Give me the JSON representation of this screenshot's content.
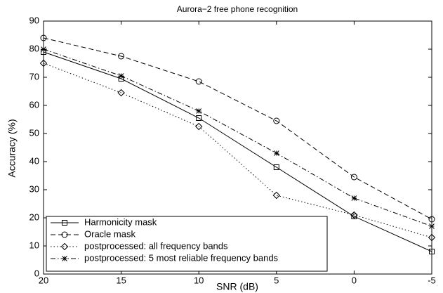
{
  "chart_data": {
    "type": "line",
    "title": "Aurora−2 free phone recognition",
    "xlabel": "SNR (dB)",
    "ylabel": "Accuracy (%)",
    "x": [
      20,
      15,
      10,
      5,
      0,
      -5
    ],
    "xlim": [
      20,
      -5
    ],
    "xticks": [
      20,
      15,
      10,
      5,
      0,
      -5
    ],
    "ylim": [
      0,
      90
    ],
    "yticks": [
      0,
      10,
      20,
      30,
      40,
      50,
      60,
      70,
      80,
      90
    ],
    "legend": "lower left",
    "series": [
      {
        "name": "Harmonicity mask",
        "color": "#000000",
        "linestyle": "solid",
        "marker": "square",
        "values": [
          79,
          69.5,
          55.5,
          38,
          20.5,
          8
        ]
      },
      {
        "name": "Oracle mask",
        "color": "#000000",
        "linestyle": "dashed",
        "marker": "circle",
        "values": [
          84,
          77.5,
          68.5,
          54.5,
          34.5,
          19.5
        ]
      },
      {
        "name": "postprocessed: all frequency bands",
        "color": "#000000",
        "linestyle": "dotted",
        "marker": "diamond",
        "values": [
          75,
          64.5,
          52.5,
          28,
          21,
          13
        ]
      },
      {
        "name": "postprocessed: 5 most reliable frequency bands",
        "color": "#000000",
        "linestyle": "dashdot",
        "marker": "star",
        "values": [
          80,
          70.5,
          58,
          43,
          27,
          17
        ]
      }
    ]
  }
}
